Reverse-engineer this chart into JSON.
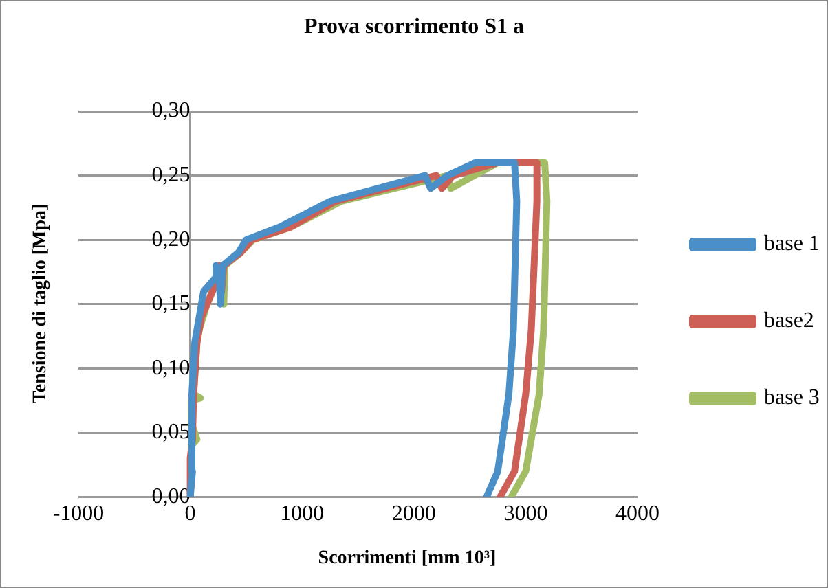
{
  "chart_data": {
    "type": "line",
    "title": "Prova scorrimento S1 a",
    "xlabel": "Scorrimenti [mm 10³]",
    "ylabel": "Tensione di taglio [Mpa]",
    "xlim": [
      -1000,
      4000
    ],
    "xticks": [
      -1000,
      0,
      1000,
      2000,
      3000,
      4000
    ],
    "ylim": [
      0,
      0.3
    ],
    "yticks": [
      {
        "value": 0,
        "label": "0,00"
      },
      {
        "value": 0.05,
        "label": "0,05"
      },
      {
        "value": 0.1,
        "label": "0,10"
      },
      {
        "value": 0.15,
        "label": "0,15"
      },
      {
        "value": 0.2,
        "label": "0,20"
      },
      {
        "value": 0.25,
        "label": "0,25"
      },
      {
        "value": 0.3,
        "label": "0,30"
      }
    ],
    "grid": "y",
    "legend": "right",
    "marker": "none",
    "line_style": "solid",
    "series": [
      {
        "name": "base 1",
        "color": "#4a8fc8",
        "x": [
          0,
          20,
          10,
          20,
          40,
          60,
          120,
          220,
          230,
          260,
          270,
          290,
          430,
          500,
          800,
          1250,
          2100,
          2150,
          2300,
          2550,
          2900,
          2920,
          2890,
          2850,
          2750,
          2650
        ],
        "values": [
          0,
          0.02,
          0.05,
          0.08,
          0.12,
          0.13,
          0.16,
          0.17,
          0.18,
          0.17,
          0.15,
          0.18,
          0.19,
          0.2,
          0.21,
          0.23,
          0.25,
          0.24,
          0.25,
          0.26,
          0.26,
          0.23,
          0.13,
          0.08,
          0.02,
          0
        ]
      },
      {
        "name": "base2",
        "color": "#cd5f57",
        "x": [
          0,
          0,
          20,
          30,
          60,
          100,
          200,
          250,
          260,
          280,
          300,
          450,
          550,
          900,
          1300,
          2200,
          2250,
          2350,
          2750,
          3100,
          3100,
          3050,
          3000,
          2900,
          2770
        ],
        "values": [
          0,
          0.03,
          0.045,
          0.08,
          0.12,
          0.14,
          0.16,
          0.17,
          0.18,
          0.16,
          0.18,
          0.19,
          0.2,
          0.21,
          0.23,
          0.25,
          0.24,
          0.25,
          0.26,
          0.26,
          0.23,
          0.13,
          0.08,
          0.02,
          0
        ]
      },
      {
        "name": "base 3",
        "color": "#a3bd64",
        "x": [
          0,
          10,
          60,
          20,
          10,
          90,
          30,
          60,
          80,
          150,
          220,
          280,
          300,
          310,
          450,
          560,
          900,
          1350,
          2300,
          2330,
          2750,
          3170,
          3190,
          3160,
          3120,
          3000,
          2870
        ],
        "values": [
          0,
          0.04,
          0.045,
          0.055,
          0.075,
          0.077,
          0.08,
          0.12,
          0.13,
          0.15,
          0.165,
          0.165,
          0.15,
          0.18,
          0.19,
          0.2,
          0.21,
          0.23,
          0.25,
          0.24,
          0.26,
          0.26,
          0.23,
          0.13,
          0.08,
          0.02,
          0
        ]
      }
    ]
  }
}
